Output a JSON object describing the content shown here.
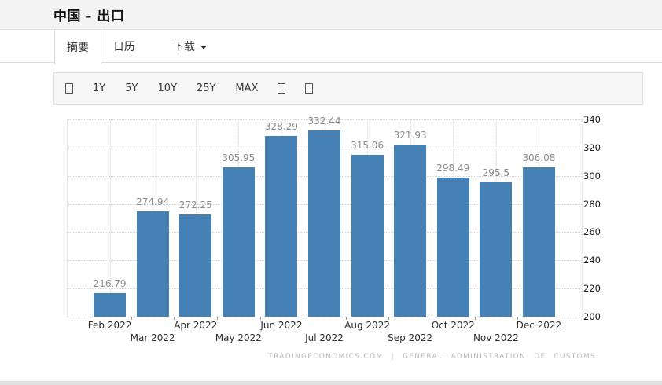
{
  "header": {
    "title": "中国 - 出口"
  },
  "tabs": [
    {
      "label": "摘要",
      "active": true
    },
    {
      "label": "日历",
      "active": false
    },
    {
      "label": "下载",
      "active": false
    }
  ],
  "toolbar": {
    "ranges": [
      "1Y",
      "5Y",
      "10Y",
      "25Y",
      "MAX"
    ],
    "icons": [
      {
        "name": "placeholder-icon-1",
        "glyph": "□"
      },
      {
        "name": "placeholder-icon-2",
        "glyph": "□"
      },
      {
        "name": "placeholder-icon-3",
        "glyph": "□"
      }
    ]
  },
  "chart_data": {
    "type": "bar",
    "title": "中国 - 出口",
    "categories": [
      "Feb 2022",
      "Mar 2022",
      "Apr 2022",
      "May 2022",
      "Jun 2022",
      "Jul 2022",
      "Aug 2022",
      "Sep 2022",
      "Oct 2022",
      "Nov 2022",
      "Dec 2022"
    ],
    "values": [
      216.79,
      274.94,
      272.25,
      305.95,
      328.29,
      332.44,
      315.06,
      321.93,
      298.49,
      295.5,
      306.08
    ],
    "xlabel": "",
    "ylabel": "",
    "ylim": [
      200,
      340
    ],
    "yticks": [
      200,
      220,
      240,
      260,
      280,
      300,
      320,
      340
    ],
    "y_axis_side": "right",
    "grid": true,
    "legend": false,
    "bar_color": "#4581b4",
    "value_label_color": "#8a8a8a"
  },
  "attribution": {
    "text": "TRADINGECONOMICS.COM | GENERAL ADMINISTRATION OF CUSTOMS"
  }
}
